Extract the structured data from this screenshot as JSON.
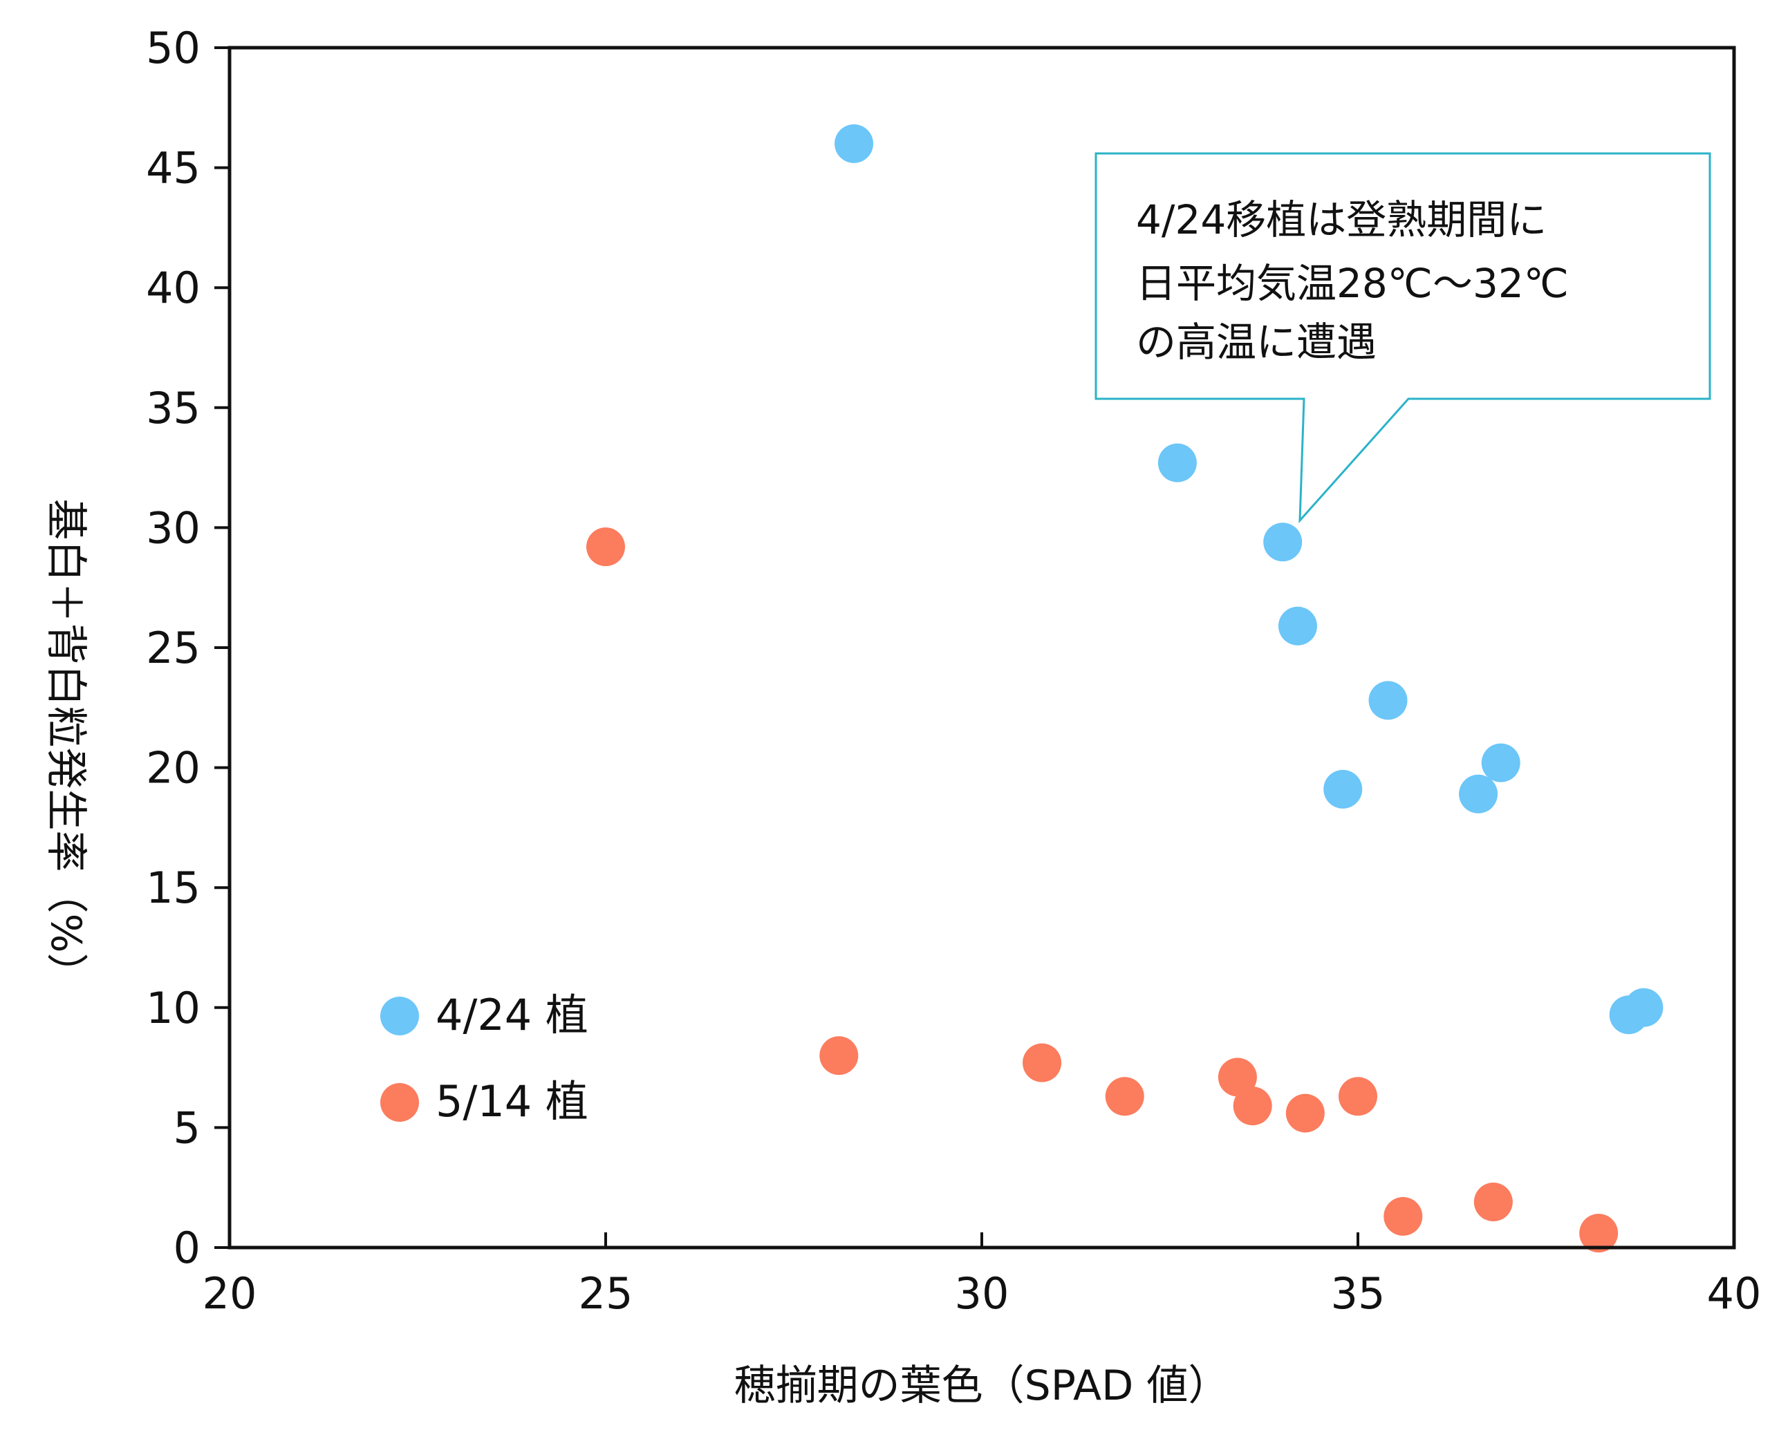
{
  "chart_data": {
    "type": "scatter",
    "xlabel": "穂揃期の葉色（SPAD 値）",
    "ylabel": "基白＋背白粒発生率（%）",
    "xlim": [
      20,
      40
    ],
    "ylim": [
      0,
      50
    ],
    "xticks": [
      20,
      25,
      30,
      35,
      40
    ],
    "yticks": [
      0,
      5,
      10,
      15,
      20,
      25,
      30,
      35,
      40,
      45,
      50
    ],
    "grid": false,
    "legend_position": "bottom-left",
    "series": [
      {
        "name": "4/24 植",
        "color": "#6cc6f8",
        "points": [
          [
            28.3,
            46.0
          ],
          [
            32.6,
            32.7
          ],
          [
            34.0,
            29.4
          ],
          [
            34.2,
            25.9
          ],
          [
            35.4,
            22.8
          ],
          [
            34.8,
            19.1
          ],
          [
            36.9,
            20.2
          ],
          [
            36.6,
            18.9
          ],
          [
            38.6,
            9.7
          ],
          [
            38.8,
            10.0
          ]
        ]
      },
      {
        "name": "5/14 植",
        "color": "#fc7c5e",
        "points": [
          [
            25.0,
            29.2
          ],
          [
            28.1,
            8.0
          ],
          [
            30.8,
            7.7
          ],
          [
            31.9,
            6.3
          ],
          [
            33.4,
            7.1
          ],
          [
            33.6,
            5.9
          ],
          [
            34.3,
            5.6
          ],
          [
            35.0,
            6.3
          ],
          [
            35.6,
            1.3
          ],
          [
            36.8,
            1.9
          ],
          [
            38.2,
            0.6
          ]
        ]
      }
    ],
    "annotation": {
      "lines": [
        "4/24移植は登熟期間に",
        "日平均気温28℃〜32℃",
        "の高温に遭遇"
      ],
      "border_color": "#2bb3c8",
      "points_to": [
        34.0,
        29.4
      ]
    }
  }
}
